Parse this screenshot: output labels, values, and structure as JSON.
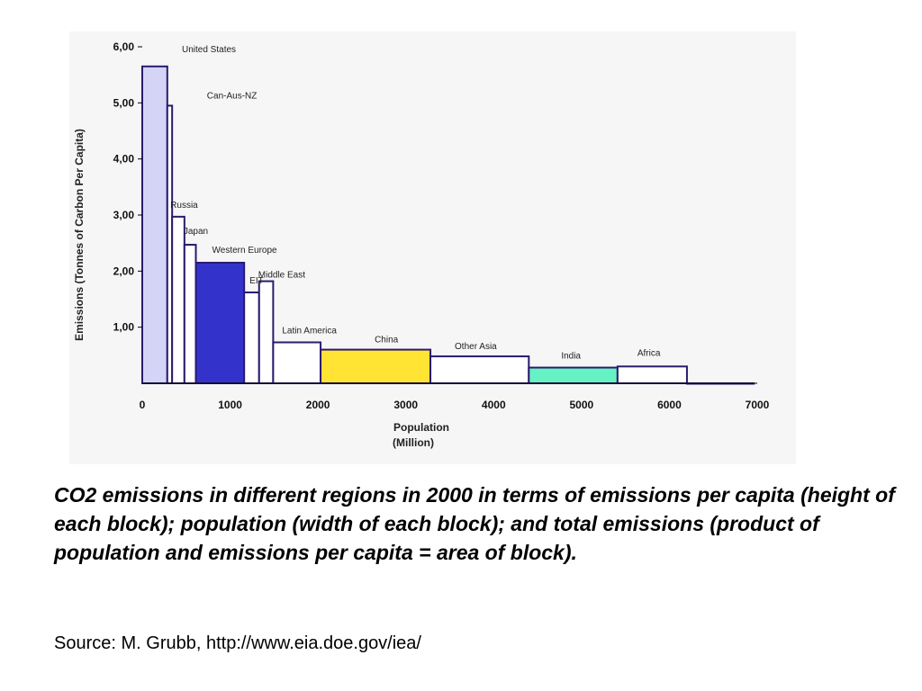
{
  "caption": "CO2 emissions in different regions in 2000 in terms of emissions per capita (height of each block); population (width of each block); and total emissions (product of population and emissions per capita = area of block).",
  "source": "Source: M. Grubb, http://www.eia.doe.gov/iea/",
  "chart_data": {
    "type": "bar",
    "title": "",
    "xlabel": "Population",
    "xlabel_sub": "(Million)",
    "ylabel": "Emissions (Tonnes of Carbon Per Capita)",
    "xlim": [
      0,
      7000
    ],
    "ylim": [
      0,
      6
    ],
    "x_ticks": [
      "0",
      "1000",
      "2000",
      "3000",
      "4000",
      "5000",
      "6000",
      "7000"
    ],
    "y_ticks": [
      "6,00",
      "5,00",
      "4,00",
      "3,00",
      "2,00",
      "1,00"
    ],
    "grid": false,
    "legend": "none",
    "outline_color": "#2b1a6e",
    "blocks": [
      {
        "region": "United States",
        "x_start": 0,
        "x_end": 285,
        "value": 5.65,
        "color": "#d4d4f7"
      },
      {
        "region": "Can-Aus-NZ",
        "x_start": 285,
        "x_end": 340,
        "value": 4.95,
        "color": "#ffffff"
      },
      {
        "region": "Russia",
        "x_start": 340,
        "x_end": 480,
        "value": 2.97,
        "color": "#ffffff"
      },
      {
        "region": "Japan",
        "x_start": 480,
        "x_end": 610,
        "value": 2.47,
        "color": "#ffffff"
      },
      {
        "region": "Western Europe",
        "x_start": 610,
        "x_end": 1160,
        "value": 2.15,
        "color": "#3333cc"
      },
      {
        "region": "EIT",
        "x_start": 1160,
        "x_end": 1330,
        "value": 1.62,
        "color": "#ffffff"
      },
      {
        "region": "Middle East",
        "x_start": 1330,
        "x_end": 1490,
        "value": 1.82,
        "color": "#ffffff"
      },
      {
        "region": "Latin America",
        "x_start": 1490,
        "x_end": 2030,
        "value": 0.73,
        "color": "#ffffff"
      },
      {
        "region": "China",
        "x_start": 2030,
        "x_end": 3280,
        "value": 0.6,
        "color": "#ffe433"
      },
      {
        "region": "Other Asia",
        "x_start": 3280,
        "x_end": 4400,
        "value": 0.48,
        "color": "#ffffff"
      },
      {
        "region": "India",
        "x_start": 4400,
        "x_end": 5410,
        "value": 0.28,
        "color": "#66f2c2"
      },
      {
        "region": "Africa",
        "x_start": 5410,
        "x_end": 6200,
        "value": 0.3,
        "color": "#ffffff"
      },
      {
        "region": "",
        "x_start": 6200,
        "x_end": 6960,
        "value": 0.0,
        "color": "#ffffff"
      }
    ]
  }
}
